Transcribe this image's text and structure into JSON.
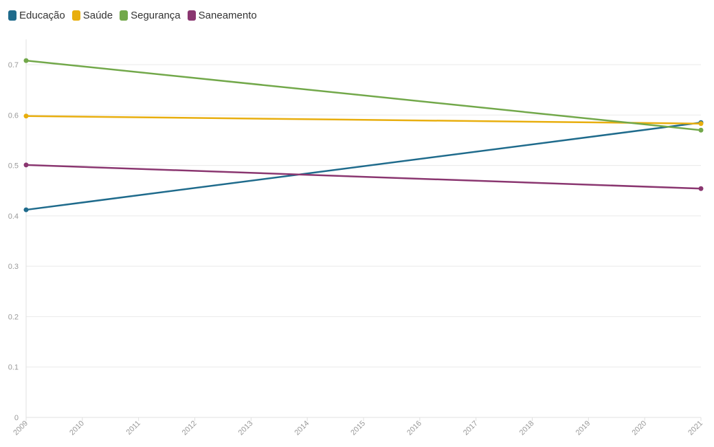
{
  "chart_data": {
    "type": "line",
    "x": [
      2009,
      2010,
      2011,
      2012,
      2013,
      2014,
      2015,
      2016,
      2017,
      2018,
      2019,
      2020,
      2021
    ],
    "xticks": [
      "2009",
      "2010",
      "2011",
      "2012",
      "2013",
      "2014",
      "2015",
      "2016",
      "2017",
      "2018",
      "2019",
      "2020",
      "2021"
    ],
    "yticks": [
      "0",
      "0.1",
      "0.2",
      "0.3",
      "0.4",
      "0.5",
      "0.6",
      "0.7"
    ],
    "ylim": [
      0,
      0.75
    ],
    "grid": true,
    "legend_position": "top-left",
    "series": [
      {
        "name": "Educação",
        "color": "#1f6b8c",
        "points": [
          [
            2009,
            0.412
          ],
          [
            2021,
            0.585
          ]
        ]
      },
      {
        "name": "Saúde",
        "color": "#e8ae0e",
        "points": [
          [
            2009,
            0.598
          ],
          [
            2021,
            0.583
          ]
        ]
      },
      {
        "name": "Segurança",
        "color": "#72a84a",
        "points": [
          [
            2009,
            0.708
          ],
          [
            2021,
            0.57
          ]
        ]
      },
      {
        "name": "Saneamento",
        "color": "#8a3670",
        "points": [
          [
            2009,
            0.501
          ],
          [
            2021,
            0.454
          ]
        ]
      }
    ]
  }
}
